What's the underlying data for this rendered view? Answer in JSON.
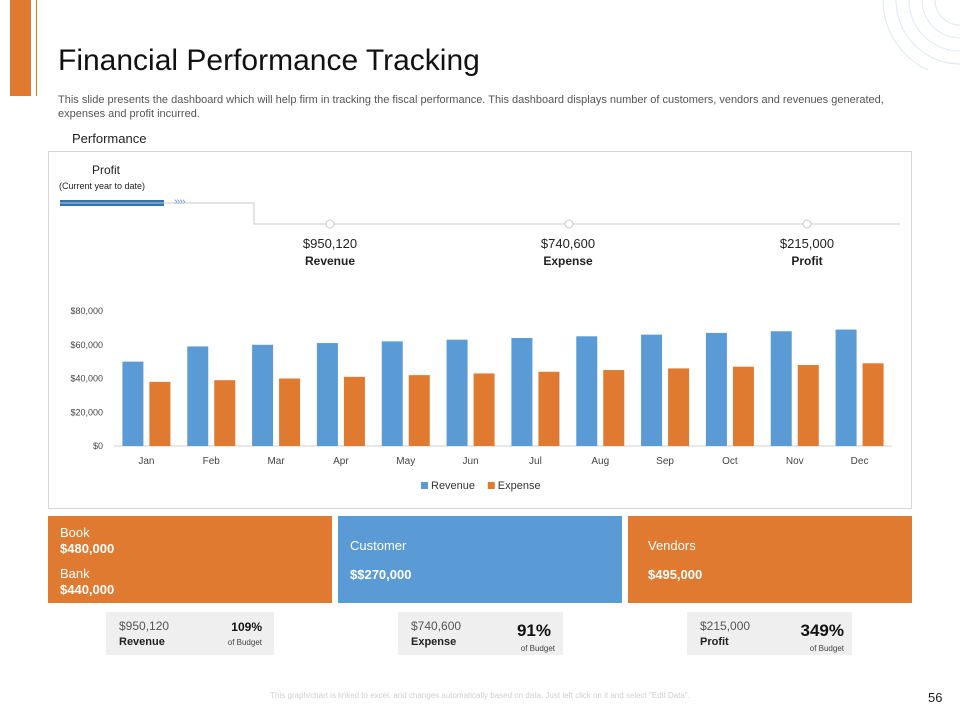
{
  "title": "Financial Performance Tracking",
  "description": "This slide presents the dashboard which will help firm in tracking the fiscal performance. This dashboard displays number of customers, vendors and revenues generated, expenses and profit incurred.",
  "section_label": "Performance",
  "profit_header": {
    "label": "Profit",
    "sublabel": "(Current year to date)",
    "chevrons": "››››"
  },
  "kpis": [
    {
      "value": "$950,120",
      "label": "Revenue"
    },
    {
      "value": "$740,600",
      "label": "Expense"
    },
    {
      "value": "$215,000",
      "label": "Profit"
    }
  ],
  "chart_data": {
    "type": "bar",
    "categories": [
      "Jan",
      "Feb",
      "Mar",
      "Apr",
      "May",
      "Jun",
      "Jul",
      "Aug",
      "Sep",
      "Oct",
      "Nov",
      "Dec"
    ],
    "series": [
      {
        "name": "Revenue",
        "color": "#5B9BD5",
        "values": [
          50000,
          59000,
          60000,
          61000,
          62000,
          63000,
          64000,
          65000,
          66000,
          67000,
          68000,
          69000
        ]
      },
      {
        "name": "Expense",
        "color": "#E07A31",
        "values": [
          38000,
          39000,
          40000,
          41000,
          42000,
          43000,
          44000,
          45000,
          46000,
          47000,
          48000,
          49000
        ]
      }
    ],
    "yticks": [
      "$0",
      "$20,000",
      "$40,000",
      "$60,000",
      "$80,000"
    ],
    "ytick_values": [
      0,
      20000,
      40000,
      60000,
      80000
    ],
    "ylim": [
      0,
      80000
    ],
    "legend_position": "bottom"
  },
  "cards": {
    "book": {
      "label": "Book",
      "value": "$480,000"
    },
    "bank": {
      "label": "Bank",
      "value": "$440,000"
    },
    "customer": {
      "label": "Customer",
      "value": "$$270,000"
    },
    "vendors": {
      "label": "Vendors",
      "value": "$495,000"
    }
  },
  "mini_kpis": [
    {
      "value": "$950,120",
      "label": "Revenue",
      "percent": "109%",
      "budget": "of Budget"
    },
    {
      "value": "$740,600",
      "label": "Expense",
      "percent": "91%",
      "budget": "of Budget"
    },
    {
      "value": "$215,000",
      "label": "Profit",
      "percent": "349%",
      "budget": "of Budget"
    }
  ],
  "footnote": "This graph/chart is linked to excel, and changes automatically based on data. Just left click on it and select \"Edit Data\".",
  "page_number": "56",
  "colors": {
    "orange": "#E07A31",
    "blue": "#5B9BD5",
    "dark_blue": "#2E75B6"
  }
}
